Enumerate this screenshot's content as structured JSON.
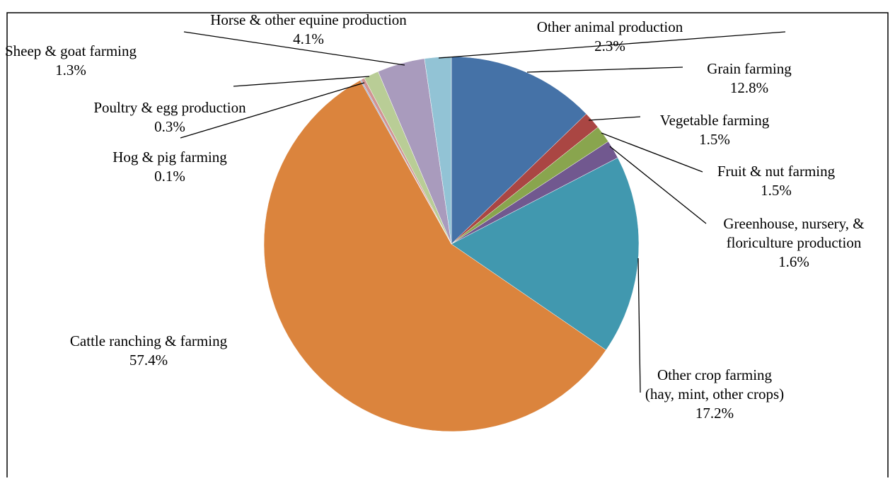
{
  "chart_data": {
    "type": "pie",
    "categories": [
      "Grain farming",
      "Vegetable farming",
      "Fruit & nut farming",
      "Greenhouse, nursery, &\nfloriculture production",
      "Other crop farming\n(hay, mint, other crops)",
      "Cattle ranching & farming",
      "Hog & pig farming",
      "Poultry & egg production",
      "Sheep & goat farming",
      "Horse & other equine production",
      "Other animal production"
    ],
    "values": [
      12.8,
      1.5,
      1.5,
      1.6,
      17.2,
      57.4,
      0.1,
      0.3,
      1.3,
      4.1,
      2.3
    ],
    "value_labels": [
      "12.8%",
      "1.5%",
      "1.5%",
      "1.6%",
      "17.2%",
      "57.4%",
      "0.1%",
      "0.3%",
      "1.3%",
      "4.1%",
      "2.3%"
    ],
    "colors": [
      "#4572a7",
      "#aa4643",
      "#89a54e",
      "#71588f",
      "#4198af",
      "#db843d",
      "#93a9cf",
      "#d19392",
      "#b9cd96",
      "#a99bbd",
      "#92c3d5"
    ]
  }
}
